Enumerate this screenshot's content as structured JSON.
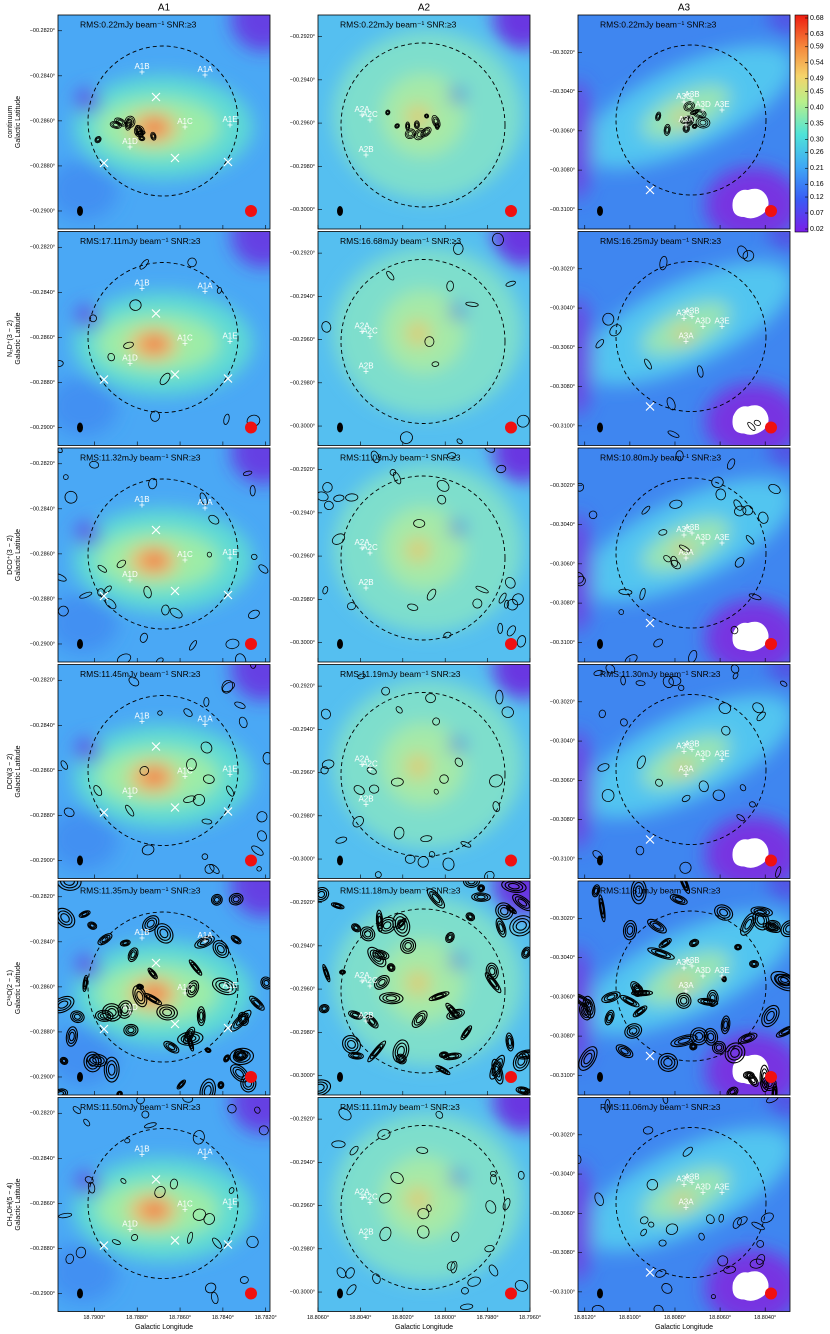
{
  "xlabel": "Galactic Longitude",
  "ylabel": "Galactic Latitude",
  "columns": [
    {
      "title": "A1",
      "xlim": [
        18.7917,
        18.7818
      ],
      "ylim": [
        -0.2908,
        -0.2813
      ],
      "xticks": [
        {
          "value": 18.79,
          "label": "18.7900°"
        },
        {
          "value": 18.788,
          "label": "18.7880°"
        },
        {
          "value": 18.786,
          "label": "18.7860°"
        },
        {
          "value": 18.784,
          "label": "18.7840°"
        },
        {
          "value": 18.782,
          "label": "18.7820°"
        }
      ],
      "yticks": [
        {
          "value": -0.282,
          "label": "−00.2820°"
        },
        {
          "value": -0.284,
          "label": "−00.2840°"
        },
        {
          "value": -0.286,
          "label": "−00.2860°"
        },
        {
          "value": -0.288,
          "label": "−00.2880°"
        },
        {
          "value": -0.29,
          "label": "−00.2900°"
        }
      ],
      "sources": [
        "A1A",
        "A1B",
        "A1C",
        "A1D",
        "A1E"
      ]
    },
    {
      "title": "A2",
      "xlim": [
        18.806,
        18.796
      ],
      "ylim": [
        -0.3009,
        -0.291
      ],
      "xticks": [
        {
          "value": 18.806,
          "label": "18.8060°"
        },
        {
          "value": 18.804,
          "label": "18.8040°"
        },
        {
          "value": 18.802,
          "label": "18.8020°"
        },
        {
          "value": 18.8,
          "label": "18.8000°"
        },
        {
          "value": 18.798,
          "label": "18.7980°"
        },
        {
          "value": 18.796,
          "label": "18.7960°"
        }
      ],
      "yticks": [
        {
          "value": -0.292,
          "label": "−00.2920°"
        },
        {
          "value": -0.294,
          "label": "−00.2940°"
        },
        {
          "value": -0.296,
          "label": "−00.2960°"
        },
        {
          "value": -0.298,
          "label": "−00.2980°"
        },
        {
          "value": -0.3,
          "label": "−00.3000°"
        }
      ],
      "sources": [
        "A2A",
        "A2C",
        "A2B"
      ]
    },
    {
      "title": "A3",
      "xlim": [
        18.8123,
        18.8029
      ],
      "ylim": [
        -0.311,
        -0.3001
      ],
      "xticks": [
        {
          "value": 18.812,
          "label": "18.8120°"
        },
        {
          "value": 18.81,
          "label": "18.8100°"
        },
        {
          "value": 18.808,
          "label": "18.8080°"
        },
        {
          "value": 18.806,
          "label": "18.8060°"
        },
        {
          "value": 18.804,
          "label": "18.8040°"
        }
      ],
      "yticks": [
        {
          "value": -0.302,
          "label": "−00.3020°"
        },
        {
          "value": -0.304,
          "label": "−00.3040°"
        },
        {
          "value": -0.306,
          "label": "−00.3060°"
        },
        {
          "value": -0.308,
          "label": "−00.3080°"
        },
        {
          "value": -0.31,
          "label": "−00.3100°"
        }
      ],
      "sources": [
        "A3A",
        "A3B",
        "A3C",
        "A3D",
        "A3E"
      ]
    }
  ],
  "rows": [
    {
      "label": "continuum",
      "rms": [
        "RMS:0.22mJy beam⁻¹ SNR:≥3",
        "RMS:0.22mJy beam⁻¹ SNR:≥3",
        "RMS:0.22mJy beam⁻¹ SNR:≥3"
      ]
    },
    {
      "label": "N₂D⁺(3 − 2)",
      "rms": [
        "RMS:17.11mJy beam⁻¹ SNR:≥3",
        "RMS:16.68mJy beam⁻¹ SNR:≥3",
        "RMS:16.25mJy beam⁻¹ SNR:≥3"
      ]
    },
    {
      "label": "DCO⁺(3 − 2)",
      "rms": [
        "RMS:11.32mJy beam⁻¹ SNR:≥3",
        "RMS:11.08mJy beam⁻¹ SNR:≥3",
        "RMS:10.80mJy beam⁻¹ SNR:≥3"
      ]
    },
    {
      "label": "DCN(3 − 2)",
      "rms": [
        "RMS:11.45mJy beam⁻¹ SNR:≥3",
        "RMS:11.19mJy beam⁻¹ SNR:≥3",
        "RMS:11.30mJy beam⁻¹ SNR:≥3"
      ]
    },
    {
      "label": "C¹⁸O(2 − 1)",
      "rms": [
        "RMS:11.35mJy beam⁻¹ SNR:≥3",
        "RMS:11.18mJy beam⁻¹ SNR:≥3",
        "RMS:11.81mJy beam⁻¹ SNR:≥3"
      ]
    },
    {
      "label": "CH₃OH(5 − 4)",
      "rms": [
        "RMS:11.50mJy beam⁻¹ SNR:≥3",
        "RMS:11.11mJy beam⁻¹ SNR:≥3",
        "RMS:11.06mJy beam⁻¹ SNR:≥3"
      ]
    }
  ],
  "colorbar": {
    "lim": [
      0.02,
      0.68
    ],
    "ticks": [
      0.02,
      0.07,
      0.12,
      0.16,
      0.21,
      0.26,
      {
        "value": 0.3,
        "label": "0.30"
      },
      0.35,
      {
        "value": 0.4,
        "label": "0.40"
      },
      0.45,
      0.49,
      0.54,
      0.59,
      0.63,
      0.68
    ]
  }
}
